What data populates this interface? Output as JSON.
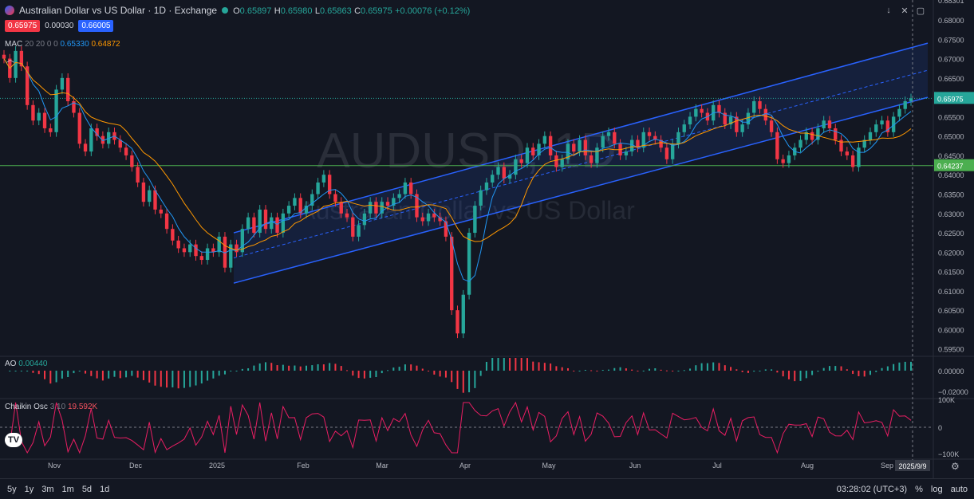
{
  "header": {
    "title": "Australian Dollar vs US Dollar · 1D · Exchange",
    "ohlc": {
      "o_label": "O",
      "o": "0.65897",
      "h_label": "H",
      "h": "0.65980",
      "l_label": "L",
      "l": "0.65863",
      "c_label": "C",
      "c": "0.65975",
      "change": "+0.00076 (+0.12%)"
    },
    "sell_price": "0.65975",
    "spread": "0.00030",
    "buy_price": "0.66005"
  },
  "indicators": {
    "ma": {
      "name": "MAC",
      "params": "20 20 0 0",
      "v1": "0.65330",
      "v2": "0.64872"
    },
    "ao": {
      "name": "AO",
      "value": "0.00440"
    },
    "chaikin": {
      "name": "Chaikin Osc",
      "params": "3 10",
      "value": "19.592K"
    }
  },
  "watermark": {
    "symbol": "AUDUSD, 1D",
    "name": "Australian Dollar vs US Dollar"
  },
  "price_axis": {
    "ticks": [
      "0.68301",
      "0.68000",
      "0.67500",
      "0.67000",
      "0.66500",
      "0.66000",
      "0.65500",
      "0.65000",
      "0.64500",
      "0.64000",
      "0.63500",
      "0.63000",
      "0.62500",
      "0.62000",
      "0.61500",
      "0.61000",
      "0.60500",
      "0.60000",
      "0.59500"
    ],
    "last_price_label": "0.65975",
    "horizontal_line_label": "0.64237"
  },
  "ao_axis": {
    "ticks": [
      "0.00000",
      "−0.02000"
    ]
  },
  "chaikin_axis": {
    "ticks": [
      "100K",
      "0",
      "−100K"
    ]
  },
  "time_axis": {
    "labels": [
      "Nov",
      "Dec",
      "2025",
      "Feb",
      "Mar",
      "Apr",
      "May",
      "Jun",
      "Jul",
      "Aug",
      "Sep"
    ],
    "current_date": "2025/9/9"
  },
  "bottom_bar": {
    "ranges": [
      "5y",
      "1y",
      "3m",
      "1m",
      "5d",
      "1d"
    ],
    "clock": "03:28:02 (UTC+3)",
    "percent": "%",
    "log": "log",
    "auto": "auto"
  },
  "colors": {
    "up": "#26a69a",
    "down": "#f23645",
    "ma_fast": "#2196f3",
    "ma_slow": "#ff9800",
    "channel": "#2962ff",
    "hline": "#4caf50",
    "chaikin": "#e91e63"
  },
  "chart_data": {
    "type": "candlestick",
    "ylim": [
      0.5935,
      0.6835
    ],
    "horizontal_line": 0.64237,
    "last_price": 0.65975,
    "candles_close": [
      0.67,
      0.665,
      0.672,
      0.668,
      0.658,
      0.654,
      0.656,
      0.652,
      0.651,
      0.662,
      0.665,
      0.659,
      0.656,
      0.648,
      0.646,
      0.652,
      0.65,
      0.648,
      0.651,
      0.649,
      0.647,
      0.645,
      0.642,
      0.638,
      0.633,
      0.636,
      0.631,
      0.63,
      0.626,
      0.623,
      0.621,
      0.62,
      0.622,
      0.619,
      0.618,
      0.621,
      0.62,
      0.624,
      0.616,
      0.622,
      0.62,
      0.626,
      0.629,
      0.625,
      0.631,
      0.626,
      0.629,
      0.625,
      0.63,
      0.632,
      0.634,
      0.63,
      0.632,
      0.635,
      0.638,
      0.64,
      0.635,
      0.633,
      0.63,
      0.629,
      0.624,
      0.627,
      0.63,
      0.633,
      0.63,
      0.633,
      0.632,
      0.634,
      0.635,
      0.638,
      0.635,
      0.629,
      0.628,
      0.63,
      0.629,
      0.628,
      0.624,
      0.605,
      0.599,
      0.609,
      0.625,
      0.632,
      0.636,
      0.638,
      0.64,
      0.642,
      0.639,
      0.64,
      0.644,
      0.643,
      0.647,
      0.645,
      0.648,
      0.65,
      0.645,
      0.642,
      0.644,
      0.648,
      0.646,
      0.649,
      0.645,
      0.643,
      0.647,
      0.65,
      0.651,
      0.648,
      0.645,
      0.646,
      0.649,
      0.647,
      0.651,
      0.65,
      0.649,
      0.647,
      0.644,
      0.648,
      0.651,
      0.653,
      0.655,
      0.657,
      0.656,
      0.654,
      0.658,
      0.656,
      0.653,
      0.655,
      0.651,
      0.653,
      0.656,
      0.659,
      0.657,
      0.654,
      0.651,
      0.644,
      0.643,
      0.645,
      0.647,
      0.649,
      0.651,
      0.649,
      0.652,
      0.654,
      0.652,
      0.649,
      0.646,
      0.645,
      0.642,
      0.647,
      0.649,
      0.651,
      0.653,
      0.654,
      0.651,
      0.655,
      0.657,
      0.659,
      0.65975
    ]
  }
}
